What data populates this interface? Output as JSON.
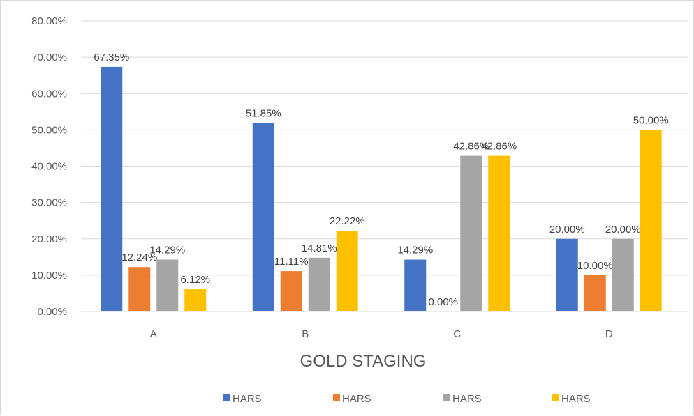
{
  "chart_data": {
    "type": "bar",
    "title": "",
    "xlabel": "GOLD STAGING",
    "ylabel": "",
    "categories": [
      "A",
      "B",
      "C",
      "D"
    ],
    "ylim": [
      0,
      80
    ],
    "y_ticks": [
      "0.00%",
      "10.00%",
      "20.00%",
      "30.00%",
      "40.00%",
      "50.00%",
      "60.00%",
      "70.00%",
      "80.00%"
    ],
    "y_tick_values": [
      0,
      10,
      20,
      30,
      40,
      50,
      60,
      70,
      80
    ],
    "grid": true,
    "legend_position": "bottom",
    "series": [
      {
        "name": "HARS",
        "color": "#4472c4",
        "values": [
          67.35,
          51.85,
          14.29,
          20.0
        ],
        "labels": [
          "67.35%",
          "51.85%",
          "14.29%",
          "20.00%"
        ]
      },
      {
        "name": "HARS",
        "color": "#ed7d31",
        "values": [
          12.24,
          11.11,
          0.0,
          10.0
        ],
        "labels": [
          "12.24%",
          "11.11%",
          "0.00%",
          "10.00%"
        ]
      },
      {
        "name": "HARS",
        "color": "#a5a5a5",
        "values": [
          14.29,
          14.81,
          42.86,
          20.0
        ],
        "labels": [
          "14.29%",
          "14.81%",
          "42.86%",
          "20.00%"
        ]
      },
      {
        "name": "HARS",
        "color": "#ffc000",
        "values": [
          6.12,
          22.22,
          42.86,
          50.0
        ],
        "labels": [
          "6.12%",
          "22.22%",
          "42.86%",
          "50.00%"
        ]
      }
    ]
  }
}
